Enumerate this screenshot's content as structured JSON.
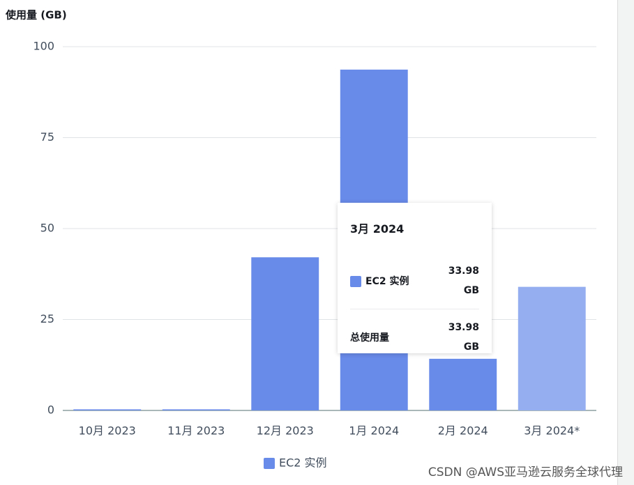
{
  "chart_data": {
    "type": "bar",
    "y_label": "使用量 (GB)",
    "categories": [
      "10月 2023",
      "11月 2023",
      "12月 2023",
      "1月 2024",
      "2月 2024",
      "3月 2024*"
    ],
    "series": [
      {
        "name": "EC2 实例",
        "color": "#688ae8",
        "values": [
          0.3,
          0.3,
          42.1,
          93.7,
          14.2,
          33.98
        ]
      }
    ],
    "bar_colors": [
      "#688ae8",
      "#688ae8",
      "#688ae8",
      "#688ae8",
      "#688ae8",
      "#94aef0"
    ],
    "ylim": [
      0,
      100
    ],
    "yticks": [
      0,
      25,
      50,
      75,
      100
    ],
    "grid": true,
    "tooltip": {
      "title": "3月 2024",
      "row_name": "EC2 实例",
      "row_value": "33.98 GB",
      "total_label": "总使用量",
      "total_value": "33.98 GB"
    }
  },
  "watermark": "CSDN @AWS亚马逊云服务全球代理"
}
